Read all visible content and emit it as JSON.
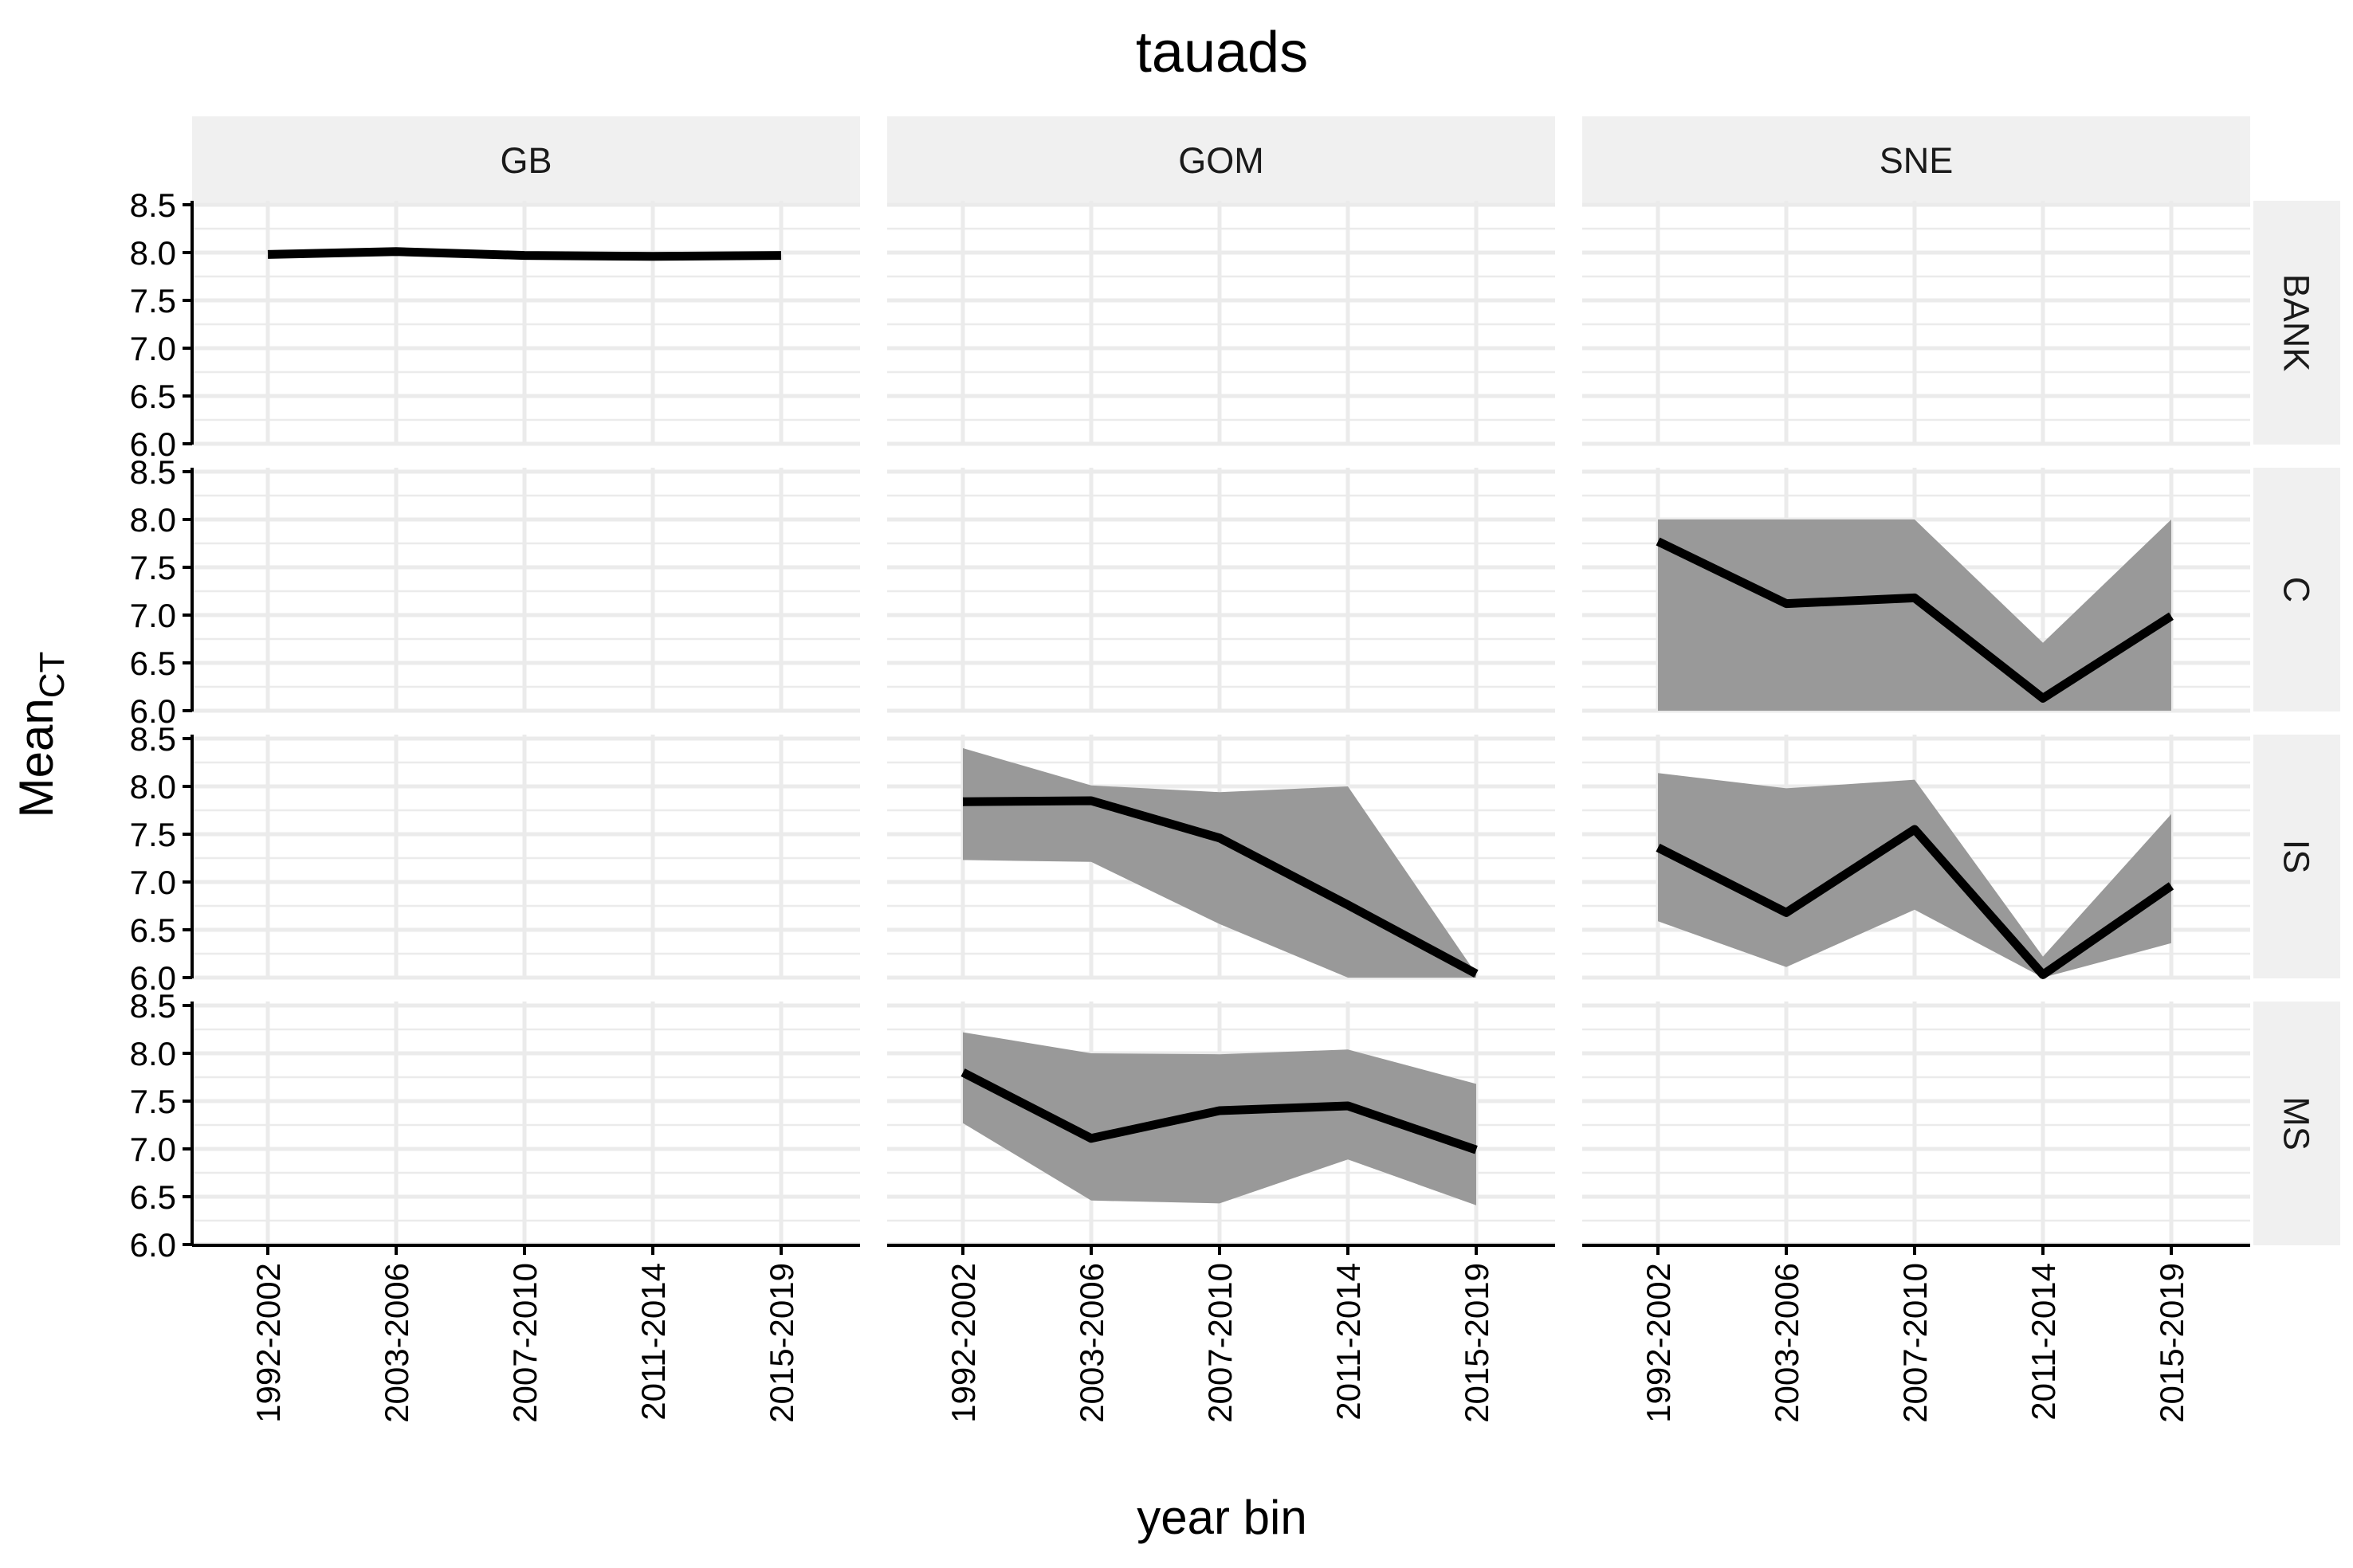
{
  "chart_data": {
    "type": "line",
    "title": "tauads",
    "xlabel": "year bin",
    "ylabel": {
      "main": "Mean",
      "subscript": "CT"
    },
    "categories": [
      "1992-2002",
      "2003-2006",
      "2007-2010",
      "2011-2014",
      "2015-2019"
    ],
    "yticks": [
      "6.0",
      "6.5",
      "7.0",
      "7.5",
      "8.0",
      "8.5"
    ],
    "ylim": [
      6.0,
      8.5
    ],
    "grid": true,
    "legend": "none",
    "columns": [
      "GB",
      "GOM",
      "SNE"
    ],
    "rows": [
      "BANK",
      "C",
      "IS",
      "MS"
    ],
    "colors": {
      "line": "#000000",
      "ribbon": "#999999",
      "strip_bg": "#f0f0f0",
      "grid": "#ebebeb",
      "axis": "#000000"
    },
    "panels": [
      {
        "column": "GB",
        "row": "BANK",
        "mean": [
          7.98,
          8.01,
          7.97,
          7.96,
          7.97
        ],
        "lower": null,
        "upper": null
      },
      {
        "column": "GB",
        "row": "C",
        "mean": null,
        "lower": null,
        "upper": null
      },
      {
        "column": "GB",
        "row": "IS",
        "mean": null,
        "lower": null,
        "upper": null
      },
      {
        "column": "GB",
        "row": "MS",
        "mean": null,
        "lower": null,
        "upper": null
      },
      {
        "column": "GOM",
        "row": "BANK",
        "mean": null,
        "lower": null,
        "upper": null
      },
      {
        "column": "GOM",
        "row": "C",
        "mean": null,
        "lower": null,
        "upper": null
      },
      {
        "column": "GOM",
        "row": "IS",
        "mean": [
          7.84,
          7.85,
          7.46,
          6.76,
          6.04
        ],
        "lower": [
          7.23,
          7.21,
          6.56,
          6.0,
          6.0
        ],
        "upper": [
          8.4,
          8.01,
          7.94,
          8.0,
          6.04
        ]
      },
      {
        "column": "GOM",
        "row": "MS",
        "mean": [
          7.8,
          7.11,
          7.4,
          7.45,
          6.99
        ],
        "lower": [
          7.27,
          6.46,
          6.43,
          6.89,
          6.41
        ],
        "upper": [
          8.22,
          8.0,
          7.99,
          8.04,
          7.68
        ]
      },
      {
        "column": "SNE",
        "row": "BANK",
        "mean": null,
        "lower": null,
        "upper": null
      },
      {
        "column": "SNE",
        "row": "C",
        "mean": [
          7.77,
          7.12,
          7.18,
          6.13,
          6.99
        ],
        "lower": [
          6.0,
          6.0,
          6.0,
          6.0,
          6.0
        ],
        "upper": [
          8.0,
          8.0,
          8.0,
          6.71,
          8.0
        ]
      },
      {
        "column": "SNE",
        "row": "IS",
        "mean": [
          7.36,
          6.68,
          7.55,
          6.03,
          6.96
        ],
        "lower": [
          6.59,
          6.11,
          6.71,
          6.0,
          6.36
        ],
        "upper": [
          8.14,
          7.98,
          8.07,
          6.22,
          7.71
        ]
      },
      {
        "column": "SNE",
        "row": "MS",
        "mean": null,
        "lower": null,
        "upper": null
      }
    ]
  }
}
